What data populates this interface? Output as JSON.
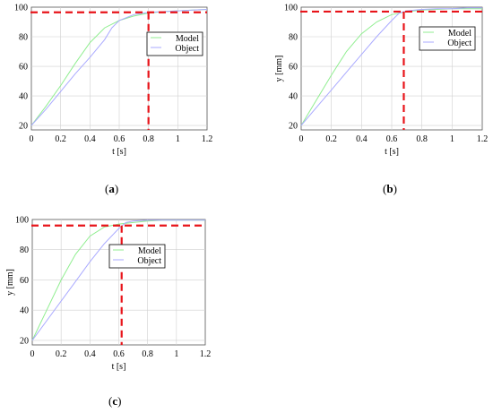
{
  "chart_data": [
    {
      "type": "line",
      "panel_label": "a",
      "xlabel": "t [s]",
      "ylabel": "",
      "xlim": [
        0,
        1.2
      ],
      "ylim": [
        17,
        100
      ],
      "xticks": [
        "0",
        "0.2",
        "0.4",
        "0.6",
        "0.8",
        "1",
        "1.2"
      ],
      "yticks": [
        "20",
        "40",
        "60",
        "80",
        "100"
      ],
      "grid": true,
      "legend_position": "center-right",
      "reference_lines": {
        "h": 96.5,
        "v": 0.8
      },
      "series": [
        {
          "name": "Model",
          "color": "#90ee90",
          "x": [
            0,
            0.1,
            0.2,
            0.3,
            0.4,
            0.5,
            0.6,
            0.7,
            0.8,
            0.9,
            1.0,
            1.1,
            1.2
          ],
          "y": [
            20,
            33,
            47,
            62,
            76,
            86,
            91,
            94,
            96,
            97,
            97.5,
            98,
            98.5
          ]
        },
        {
          "name": "Object",
          "color": "#aaaaff",
          "x": [
            0,
            0.1,
            0.2,
            0.3,
            0.4,
            0.5,
            0.55,
            0.6,
            0.7,
            0.8,
            0.9,
            1.0,
            1.1,
            1.2
          ],
          "y": [
            20,
            31,
            43,
            55,
            66,
            78,
            86,
            91,
            95,
            96.5,
            97,
            97.5,
            98,
            98.5
          ]
        }
      ]
    },
    {
      "type": "line",
      "panel_label": "b",
      "xlabel": "t [s]",
      "ylabel": "y [mm]",
      "xlim": [
        0,
        1.2
      ],
      "ylim": [
        17,
        100
      ],
      "xticks": [
        "0",
        "0.2",
        "0.4",
        "0.6",
        "0.8",
        "1",
        "1.2"
      ],
      "yticks": [
        "20",
        "40",
        "60",
        "80",
        "100"
      ],
      "grid": true,
      "legend_position": "top-right",
      "reference_lines": {
        "h": 97,
        "v": 0.68
      },
      "series": [
        {
          "name": "Model",
          "color": "#90ee90",
          "x": [
            0,
            0.1,
            0.2,
            0.3,
            0.4,
            0.5,
            0.6,
            0.7,
            0.8,
            0.9,
            1.0,
            1.1,
            1.2
          ],
          "y": [
            20,
            37,
            54,
            70,
            82,
            90,
            95,
            97,
            98,
            98.5,
            99,
            99,
            99
          ]
        },
        {
          "name": "Object",
          "color": "#aaaaff",
          "x": [
            0,
            0.1,
            0.2,
            0.3,
            0.4,
            0.5,
            0.6,
            0.65,
            0.7,
            0.8,
            0.9,
            1.0,
            1.1,
            1.2
          ],
          "y": [
            20,
            32,
            44,
            56,
            68,
            80,
            91,
            96,
            97.5,
            98.5,
            99,
            99,
            99.5,
            99.5
          ]
        }
      ]
    },
    {
      "type": "line",
      "panel_label": "c",
      "xlabel": "t [s]",
      "ylabel": "y [mm]",
      "xlim": [
        0,
        1.2
      ],
      "ylim": [
        17,
        100
      ],
      "xticks": [
        "0",
        "0.2",
        "0.4",
        "0.6",
        "0.8",
        "1",
        "1.2"
      ],
      "yticks": [
        "20",
        "40",
        "60",
        "80",
        "100"
      ],
      "grid": true,
      "legend_position": "center",
      "reference_lines": {
        "h": 96,
        "v": 0.62
      },
      "series": [
        {
          "name": "Model",
          "color": "#90ee90",
          "x": [
            0,
            0.1,
            0.2,
            0.3,
            0.4,
            0.5,
            0.6,
            0.7,
            0.8,
            0.9,
            1.0,
            1.1,
            1.2
          ],
          "y": [
            20,
            40,
            60,
            77,
            89,
            95,
            97,
            98,
            99,
            99.5,
            99.5,
            99.5,
            99.5
          ]
        },
        {
          "name": "Object",
          "color": "#aaaaff",
          "x": [
            0,
            0.1,
            0.2,
            0.3,
            0.4,
            0.5,
            0.6,
            0.65,
            0.7,
            0.8,
            0.9,
            1.0,
            1.1,
            1.2
          ],
          "y": [
            20,
            33,
            46,
            59,
            72,
            84,
            94,
            98,
            99,
            99.5,
            99.5,
            99.5,
            99.5,
            99.5
          ]
        }
      ]
    }
  ]
}
